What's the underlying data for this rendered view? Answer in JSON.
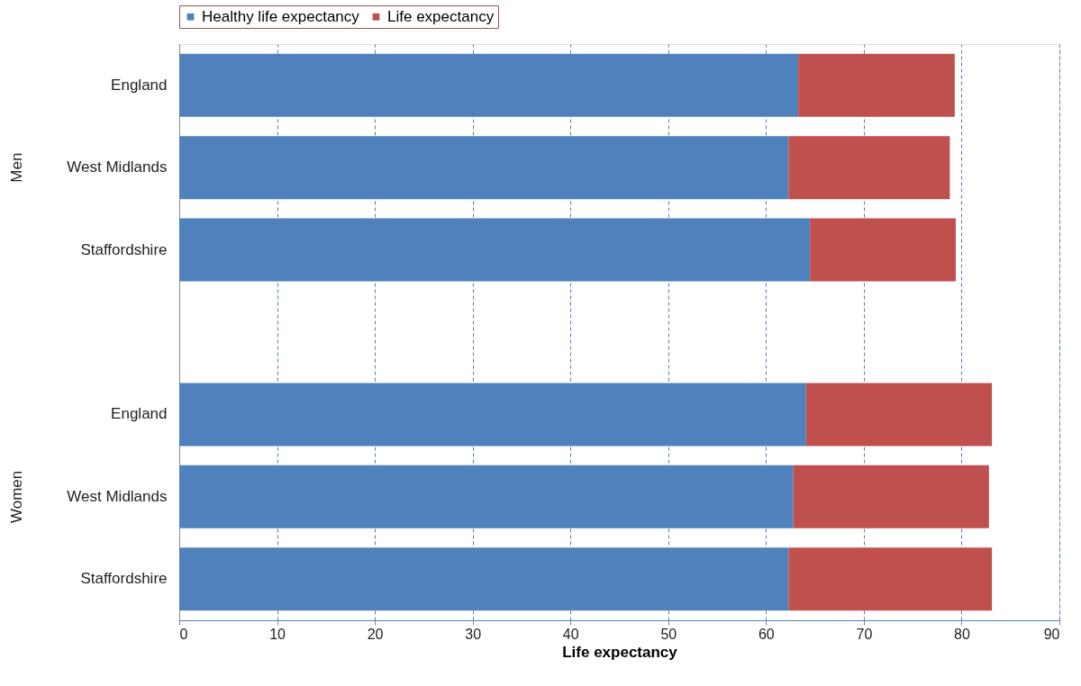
{
  "chart_data": {
    "type": "bar",
    "orientation": "horizontal",
    "stacked": true,
    "xlabel": "Life expectancy",
    "categories": [
      "England",
      "West Midlands",
      "Staffordshire",
      null,
      "England",
      "West Midlands",
      "Staffordshire"
    ],
    "series": [
      {
        "name": "Healthy life expectancy",
        "color": "#4f81bd",
        "values": [
          63.3,
          62.3,
          64.5,
          null,
          64.1,
          62.8,
          62.3
        ]
      },
      {
        "name": "Life expectancy",
        "color": "#c0504d",
        "values": [
          16.0,
          16.5,
          14.9,
          null,
          19.0,
          20.0,
          20.8
        ]
      }
    ],
    "xlim": [
      0,
      90
    ],
    "xticks": [
      0,
      10,
      20,
      30,
      40,
      50,
      60,
      70,
      80,
      90
    ],
    "grid": "x",
    "legend": "top",
    "annotations": [
      "Men",
      "Women"
    ]
  }
}
